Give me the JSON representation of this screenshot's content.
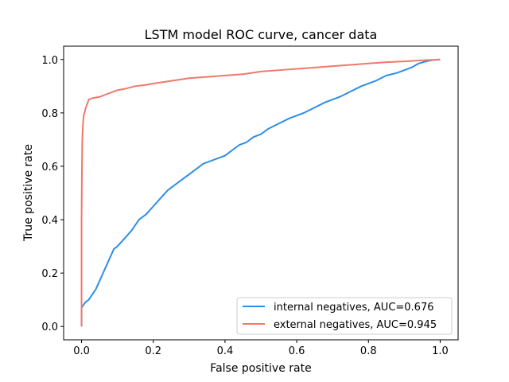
{
  "chart_data": {
    "type": "line",
    "title": "LSTM model ROC curve, cancer data",
    "xlabel": "False positive rate",
    "ylabel": "True positive rate",
    "xlim": [
      -0.05,
      1.05
    ],
    "ylim": [
      -0.05,
      1.05
    ],
    "xticks": [
      0.0,
      0.2,
      0.4,
      0.6,
      0.8,
      1.0
    ],
    "yticks": [
      0.0,
      0.2,
      0.4,
      0.6,
      0.8,
      1.0
    ],
    "xtick_labels": [
      "0.0",
      "0.2",
      "0.4",
      "0.6",
      "0.8",
      "1.0"
    ],
    "ytick_labels": [
      "0.0",
      "0.2",
      "0.4",
      "0.6",
      "0.8",
      "1.0"
    ],
    "grid": false,
    "legend_position": "bottom-right",
    "series": [
      {
        "name": "internal negatives, AUC=0.676",
        "color": "#2e8ee8",
        "x": [
          0.0,
          0.0,
          0.005,
          0.01,
          0.02,
          0.03,
          0.04,
          0.05,
          0.06,
          0.07,
          0.08,
          0.09,
          0.1,
          0.12,
          0.14,
          0.15,
          0.16,
          0.17,
          0.18,
          0.2,
          0.22,
          0.24,
          0.26,
          0.28,
          0.3,
          0.32,
          0.34,
          0.36,
          0.38,
          0.4,
          0.42,
          0.44,
          0.46,
          0.48,
          0.5,
          0.52,
          0.55,
          0.58,
          0.6,
          0.62,
          0.65,
          0.68,
          0.7,
          0.72,
          0.75,
          0.78,
          0.8,
          0.82,
          0.85,
          0.88,
          0.9,
          0.92,
          0.94,
          0.96,
          0.98,
          1.0
        ],
        "y": [
          0.0,
          0.07,
          0.08,
          0.09,
          0.1,
          0.12,
          0.14,
          0.17,
          0.2,
          0.23,
          0.26,
          0.29,
          0.3,
          0.33,
          0.36,
          0.38,
          0.4,
          0.41,
          0.42,
          0.45,
          0.48,
          0.51,
          0.53,
          0.55,
          0.57,
          0.59,
          0.61,
          0.62,
          0.63,
          0.64,
          0.66,
          0.68,
          0.69,
          0.71,
          0.72,
          0.74,
          0.76,
          0.78,
          0.79,
          0.8,
          0.82,
          0.84,
          0.85,
          0.86,
          0.88,
          0.9,
          0.91,
          0.92,
          0.94,
          0.95,
          0.96,
          0.97,
          0.985,
          0.993,
          0.998,
          1.0
        ]
      },
      {
        "name": "external negatives, AUC=0.945",
        "color": "#f0796a",
        "x": [
          0.0,
          0.0,
          0.001,
          0.002,
          0.004,
          0.006,
          0.008,
          0.01,
          0.012,
          0.015,
          0.02,
          0.03,
          0.05,
          0.08,
          0.1,
          0.12,
          0.15,
          0.18,
          0.2,
          0.25,
          0.3,
          0.35,
          0.4,
          0.45,
          0.5,
          0.55,
          0.6,
          0.65,
          0.7,
          0.75,
          0.8,
          0.85,
          0.9,
          0.95,
          1.0
        ],
        "y": [
          0.0,
          0.4,
          0.58,
          0.7,
          0.76,
          0.79,
          0.8,
          0.81,
          0.82,
          0.83,
          0.85,
          0.855,
          0.86,
          0.875,
          0.885,
          0.89,
          0.9,
          0.905,
          0.91,
          0.92,
          0.93,
          0.935,
          0.94,
          0.945,
          0.955,
          0.96,
          0.965,
          0.97,
          0.975,
          0.98,
          0.985,
          0.99,
          0.993,
          0.997,
          1.0
        ]
      }
    ]
  }
}
